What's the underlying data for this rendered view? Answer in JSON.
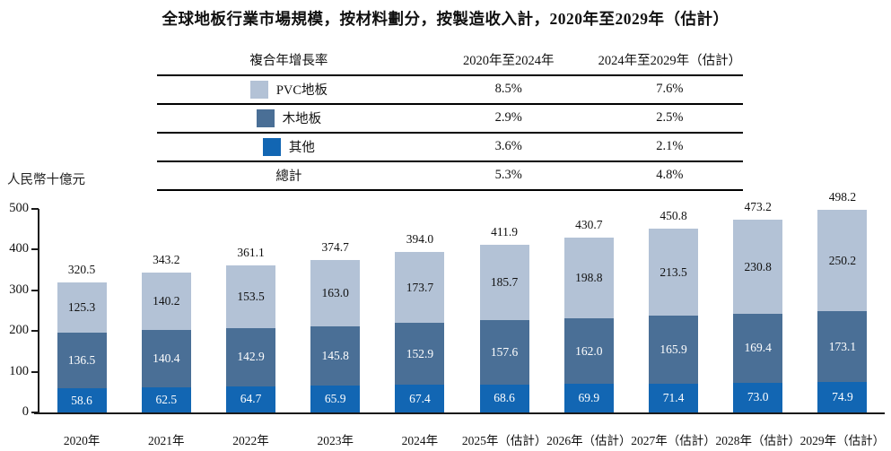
{
  "title": "全球地板行業市場規模，按材料劃分，按製造收入計，2020年至2029年（估計）",
  "colors": {
    "pvc": "#b3c2d6",
    "wood": "#4a6f96",
    "other": "#1266b3",
    "axis": "#1a1a1a"
  },
  "cagr_table": {
    "header": {
      "label": "複合年增長率",
      "period1": "2020年至2024年",
      "period2": "2024年至2029年（估計）"
    },
    "rows": [
      {
        "label": "PVC地板",
        "swatch": "#b3c2d6",
        "period1": "8.5%",
        "period2": "7.6%"
      },
      {
        "label": "木地板",
        "swatch": "#4a6f96",
        "period1": "2.9%",
        "period2": "2.5%"
      },
      {
        "label": "其他",
        "swatch": "#1266b3",
        "period1": "3.6%",
        "period2": "2.1%"
      },
      {
        "label": "總計",
        "period1": "5.3%",
        "period2": "4.8%"
      }
    ]
  },
  "chart_data": {
    "type": "bar",
    "stacked": true,
    "title": "全球地板行業市場規模，按材料劃分，按製造收入計，2020年至2029年（估計）",
    "ylabel": "人民幣十億元",
    "xlabel": "",
    "ylim": [
      0,
      500
    ],
    "yticks": [
      0,
      100,
      200,
      300,
      400,
      500
    ],
    "grid": false,
    "legend_position": "table-above",
    "categories": [
      "2020年",
      "2021年",
      "2022年",
      "2023年",
      "2024年",
      "2025年（估計）",
      "2026年（估計）",
      "2027年（估計）",
      "2028年（估計）",
      "2029年（估計）"
    ],
    "series": [
      {
        "name": "PVC地板",
        "color": "#b3c2d6",
        "label_color": "#111111",
        "values": [
          125.3,
          140.2,
          153.5,
          163.0,
          173.7,
          185.7,
          198.8,
          213.5,
          230.8,
          250.2
        ]
      },
      {
        "name": "木地板",
        "color": "#4a6f96",
        "label_color": "#ffffff",
        "values": [
          136.5,
          140.4,
          142.9,
          145.8,
          152.9,
          157.6,
          162.0,
          165.9,
          169.4,
          173.1
        ]
      },
      {
        "name": "其他",
        "color": "#1266b3",
        "label_color": "#ffffff",
        "values": [
          58.6,
          62.5,
          64.7,
          65.9,
          67.4,
          68.6,
          69.9,
          71.4,
          73.0,
          74.9
        ]
      }
    ],
    "totals": [
      320.5,
      343.2,
      361.1,
      374.7,
      394.0,
      411.9,
      430.7,
      450.8,
      473.2,
      498.2
    ]
  }
}
